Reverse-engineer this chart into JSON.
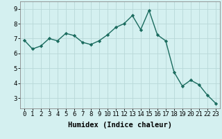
{
  "x": [
    0,
    1,
    2,
    3,
    4,
    5,
    6,
    7,
    8,
    9,
    10,
    11,
    12,
    13,
    14,
    15,
    16,
    17,
    18,
    19,
    20,
    21,
    22,
    23
  ],
  "y": [
    6.9,
    6.3,
    6.5,
    7.0,
    6.85,
    7.35,
    7.2,
    6.75,
    6.6,
    6.85,
    7.25,
    7.75,
    8.0,
    8.55,
    7.6,
    8.9,
    7.25,
    6.85,
    4.75,
    3.8,
    4.2,
    3.9,
    3.2,
    2.65
  ],
  "line_color": "#1a6b5e",
  "marker": "D",
  "marker_size": 2.2,
  "line_width": 1.0,
  "bg_color": "#d4f0f0",
  "grid_color": "#b8d8d8",
  "xlabel": "Humidex (Indice chaleur)",
  "xlabel_fontsize": 7.5,
  "tick_fontsize": 6.5,
  "ylim": [
    2.3,
    9.5
  ],
  "yticks": [
    3,
    4,
    5,
    6,
    7,
    8,
    9
  ],
  "xticks": [
    0,
    1,
    2,
    3,
    4,
    5,
    6,
    7,
    8,
    9,
    10,
    11,
    12,
    13,
    14,
    15,
    16,
    17,
    18,
    19,
    20,
    21,
    22,
    23
  ]
}
